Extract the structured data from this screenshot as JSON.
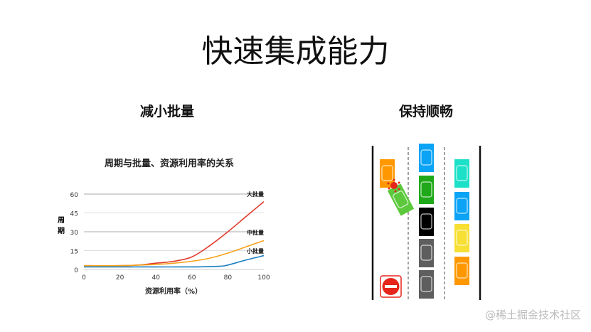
{
  "slide": {
    "title": "快速集成能力",
    "left_heading": "减小批量",
    "right_heading": "保持顺畅",
    "watermark": "@稀土掘金技术社区"
  },
  "chart_data": {
    "type": "line",
    "title": "周期与批量、资源利用率的关系",
    "xlabel": "资源利用率（%）",
    "ylabel": "周期",
    "xlim": [
      0,
      100
    ],
    "ylim": [
      0,
      60
    ],
    "xticks": [
      0,
      20,
      40,
      60,
      80,
      100
    ],
    "yticks": [
      0,
      15,
      30,
      45,
      60
    ],
    "grid": "horizontal",
    "series": [
      {
        "name": "大批量",
        "color": "#e0392b",
        "x": [
          0,
          20,
          30,
          40,
          50,
          60,
          70,
          80,
          90,
          100
        ],
        "y": [
          3,
          3,
          3.5,
          5,
          6.5,
          10,
          19,
          30,
          42,
          54
        ]
      },
      {
        "name": "中批量",
        "color": "#f5a31a",
        "x": [
          0,
          20,
          40,
          50,
          60,
          70,
          80,
          90,
          100
        ],
        "y": [
          3,
          3,
          4,
          5,
          6.5,
          9,
          13,
          18,
          23
        ]
      },
      {
        "name": "小批量",
        "color": "#1a7fc1",
        "x": [
          0,
          20,
          40,
          60,
          75,
          80,
          90,
          100
        ],
        "y": [
          2,
          2,
          2,
          2,
          2.5,
          3.5,
          7.5,
          11
        ]
      }
    ]
  },
  "diagram": {
    "cars_left_lane": [
      "#ff9800",
      "#5cc93c"
    ],
    "cars_middle_lane": [
      "#0aa3f5",
      "#1fa91a",
      "#000000",
      "#5e5e5e",
      "#5e5e5e"
    ],
    "cars_right_lane": [
      "#1de0c8",
      "#0aa3f5",
      "#f7df33",
      "#ff9800"
    ],
    "crash_color": "#e5251b",
    "no_entry_sign_color": "#e5251b"
  }
}
